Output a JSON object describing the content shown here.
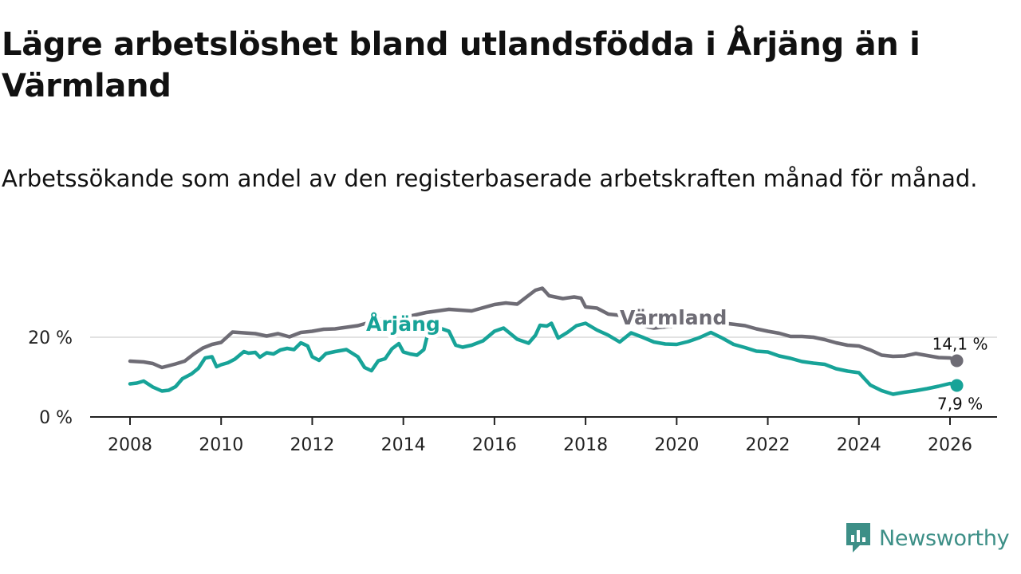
{
  "title": "Lägre arbetslöshet bland utlandsfödda i Årjäng än i Värmland",
  "subtitle": "Arbetssökande som andel av den registerbaserade arbetskraften månad för månad.",
  "brand": {
    "name": "Newsworthy",
    "color": "#3d8f87",
    "icon": "newsworthy-logo-icon"
  },
  "chart_data": {
    "type": "line",
    "title": "Lägre arbetslöshet bland utlandsfödda i Årjäng än i Värmland",
    "subtitle": "Arbetssökande som andel av den registerbaserade arbetskraften månad för månad.",
    "xlabel": "",
    "ylabel": "",
    "xlim": [
      2007.5,
      2026.9
    ],
    "ylim": [
      0,
      34
    ],
    "x_ticks": [
      "2008",
      "2010",
      "2012",
      "2014",
      "2016",
      "2018",
      "2020",
      "2022",
      "2024",
      "2026"
    ],
    "y_ticks": [
      "0 %",
      "20 %"
    ],
    "grid": "horizontal at 20 %",
    "series": [
      {
        "name": "Värmland",
        "color": "#6e6c75",
        "end_label": "14,1 %",
        "points": [
          [
            2008.0,
            14.0
          ],
          [
            2008.3,
            13.8
          ],
          [
            2008.5,
            13.4
          ],
          [
            2008.7,
            12.4
          ],
          [
            2009.0,
            13.3
          ],
          [
            2009.2,
            14.0
          ],
          [
            2009.4,
            15.8
          ],
          [
            2009.6,
            17.3
          ],
          [
            2009.8,
            18.2
          ],
          [
            2010.0,
            18.7
          ],
          [
            2010.25,
            21.3
          ],
          [
            2010.5,
            21.1
          ],
          [
            2010.75,
            20.9
          ],
          [
            2011.0,
            20.3
          ],
          [
            2011.25,
            20.9
          ],
          [
            2011.5,
            20.1
          ],
          [
            2011.75,
            21.2
          ],
          [
            2012.0,
            21.5
          ],
          [
            2012.25,
            22.0
          ],
          [
            2012.5,
            22.1
          ],
          [
            2012.75,
            22.5
          ],
          [
            2013.0,
            22.9
          ],
          [
            2013.5,
            24.5
          ],
          [
            2014.0,
            24.9
          ],
          [
            2014.5,
            26.2
          ],
          [
            2015.0,
            27.0
          ],
          [
            2015.5,
            26.6
          ],
          [
            2016.0,
            28.2
          ],
          [
            2016.25,
            28.6
          ],
          [
            2016.5,
            28.3
          ],
          [
            2016.75,
            30.5
          ],
          [
            2016.9,
            31.8
          ],
          [
            2017.05,
            32.3
          ],
          [
            2017.2,
            30.4
          ],
          [
            2017.5,
            29.7
          ],
          [
            2017.75,
            30.1
          ],
          [
            2017.9,
            29.8
          ],
          [
            2018.0,
            27.6
          ],
          [
            2018.25,
            27.3
          ],
          [
            2018.5,
            25.8
          ],
          [
            2018.75,
            25.5
          ],
          [
            2019.0,
            23.4
          ],
          [
            2019.5,
            22.3
          ],
          [
            2020.0,
            22.9
          ],
          [
            2020.5,
            23.8
          ],
          [
            2021.0,
            23.6
          ],
          [
            2021.5,
            22.9
          ],
          [
            2021.75,
            22.1
          ],
          [
            2022.0,
            21.5
          ],
          [
            2022.25,
            21.0
          ],
          [
            2022.5,
            20.2
          ],
          [
            2022.75,
            20.2
          ],
          [
            2023.0,
            20.0
          ],
          [
            2023.25,
            19.4
          ],
          [
            2023.5,
            18.6
          ],
          [
            2023.75,
            18.0
          ],
          [
            2024.0,
            17.8
          ],
          [
            2024.25,
            16.8
          ],
          [
            2024.5,
            15.5
          ],
          [
            2024.75,
            15.2
          ],
          [
            2025.0,
            15.3
          ],
          [
            2025.25,
            15.9
          ],
          [
            2025.5,
            15.4
          ],
          [
            2025.75,
            14.9
          ],
          [
            2026.0,
            14.8
          ],
          [
            2026.15,
            14.1
          ]
        ]
      },
      {
        "name": "Årjäng",
        "color": "#17a398",
        "end_label": "7,9 %",
        "points": [
          [
            2008.0,
            8.3
          ],
          [
            2008.15,
            8.5
          ],
          [
            2008.3,
            9.0
          ],
          [
            2008.5,
            7.5
          ],
          [
            2008.7,
            6.5
          ],
          [
            2008.85,
            6.7
          ],
          [
            2009.0,
            7.6
          ],
          [
            2009.15,
            9.6
          ],
          [
            2009.35,
            10.8
          ],
          [
            2009.5,
            12.2
          ],
          [
            2009.65,
            14.8
          ],
          [
            2009.8,
            15.1
          ],
          [
            2009.9,
            12.6
          ],
          [
            2010.0,
            13.1
          ],
          [
            2010.15,
            13.6
          ],
          [
            2010.3,
            14.5
          ],
          [
            2010.5,
            16.4
          ],
          [
            2010.6,
            16.0
          ],
          [
            2010.75,
            16.2
          ],
          [
            2010.85,
            15.0
          ],
          [
            2011.0,
            16.1
          ],
          [
            2011.15,
            15.8
          ],
          [
            2011.3,
            16.8
          ],
          [
            2011.45,
            17.2
          ],
          [
            2011.6,
            16.9
          ],
          [
            2011.75,
            18.6
          ],
          [
            2011.9,
            17.8
          ],
          [
            2012.0,
            15.1
          ],
          [
            2012.15,
            14.2
          ],
          [
            2012.3,
            15.9
          ],
          [
            2012.5,
            16.4
          ],
          [
            2012.75,
            16.9
          ],
          [
            2013.0,
            15.1
          ],
          [
            2013.15,
            12.4
          ],
          [
            2013.3,
            11.6
          ],
          [
            2013.45,
            14.1
          ],
          [
            2013.6,
            14.6
          ],
          [
            2013.75,
            17.1
          ],
          [
            2013.9,
            18.4
          ],
          [
            2014.0,
            16.3
          ],
          [
            2014.15,
            15.8
          ],
          [
            2014.3,
            15.5
          ],
          [
            2014.45,
            16.9
          ],
          [
            2014.55,
            21.5
          ],
          [
            2014.75,
            22.5
          ],
          [
            2015.0,
            21.5
          ],
          [
            2015.15,
            18.0
          ],
          [
            2015.3,
            17.5
          ],
          [
            2015.5,
            18.0
          ],
          [
            2015.75,
            19.1
          ],
          [
            2016.0,
            21.5
          ],
          [
            2016.2,
            22.3
          ],
          [
            2016.5,
            19.5
          ],
          [
            2016.75,
            18.5
          ],
          [
            2016.9,
            20.5
          ],
          [
            2017.0,
            23.0
          ],
          [
            2017.15,
            22.8
          ],
          [
            2017.25,
            23.5
          ],
          [
            2017.4,
            19.8
          ],
          [
            2017.6,
            21.2
          ],
          [
            2017.8,
            22.9
          ],
          [
            2018.0,
            23.5
          ],
          [
            2018.25,
            21.8
          ],
          [
            2018.5,
            20.5
          ],
          [
            2018.75,
            18.8
          ],
          [
            2019.0,
            21.1
          ],
          [
            2019.25,
            20.0
          ],
          [
            2019.5,
            18.8
          ],
          [
            2019.75,
            18.3
          ],
          [
            2020.0,
            18.2
          ],
          [
            2020.25,
            18.9
          ],
          [
            2020.5,
            19.9
          ],
          [
            2020.75,
            21.2
          ],
          [
            2021.0,
            19.8
          ],
          [
            2021.25,
            18.2
          ],
          [
            2021.5,
            17.4
          ],
          [
            2021.75,
            16.5
          ],
          [
            2022.0,
            16.3
          ],
          [
            2022.25,
            15.3
          ],
          [
            2022.5,
            14.7
          ],
          [
            2022.75,
            13.9
          ],
          [
            2023.0,
            13.5
          ],
          [
            2023.25,
            13.2
          ],
          [
            2023.5,
            12.1
          ],
          [
            2023.75,
            11.5
          ],
          [
            2024.0,
            11.1
          ],
          [
            2024.25,
            8.0
          ],
          [
            2024.5,
            6.6
          ],
          [
            2024.75,
            5.7
          ],
          [
            2025.0,
            6.2
          ],
          [
            2025.25,
            6.6
          ],
          [
            2025.5,
            7.1
          ],
          [
            2025.75,
            7.7
          ],
          [
            2026.0,
            8.4
          ],
          [
            2026.15,
            7.9
          ]
        ]
      }
    ]
  }
}
